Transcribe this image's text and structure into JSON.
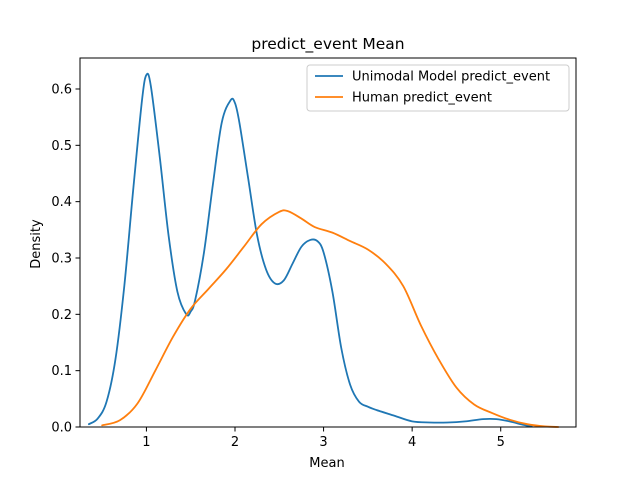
{
  "chart_data": {
    "type": "line",
    "title": "predict_event Mean",
    "xlabel": "Mean",
    "ylabel": "Density",
    "xlim": [
      0.25,
      5.85
    ],
    "ylim": [
      0,
      0.655
    ],
    "xticks": [
      1,
      2,
      3,
      4,
      5
    ],
    "yticks": [
      0.0,
      0.1,
      0.2,
      0.3,
      0.4,
      0.5,
      0.6
    ],
    "grid": false,
    "legend_position": "top-right",
    "series": [
      {
        "name": "Unimodal Model predict_event",
        "color": "#1f77b4",
        "x": [
          0.35,
          0.45,
          0.55,
          0.65,
          0.75,
          0.85,
          0.95,
          1.0,
          1.05,
          1.15,
          1.25,
          1.35,
          1.45,
          1.5,
          1.55,
          1.65,
          1.75,
          1.85,
          1.95,
          2.0,
          2.05,
          2.15,
          2.25,
          2.35,
          2.45,
          2.55,
          2.65,
          2.75,
          2.85,
          2.93,
          3.0,
          3.1,
          3.2,
          3.3,
          3.4,
          3.5,
          3.6,
          3.8,
          4.0,
          4.2,
          4.4,
          4.6,
          4.8,
          4.95,
          5.1,
          5.25,
          5.35
        ],
        "y": [
          0.005,
          0.015,
          0.045,
          0.12,
          0.25,
          0.42,
          0.58,
          0.625,
          0.605,
          0.48,
          0.34,
          0.24,
          0.2,
          0.205,
          0.225,
          0.31,
          0.43,
          0.54,
          0.58,
          0.575,
          0.54,
          0.44,
          0.34,
          0.28,
          0.255,
          0.26,
          0.29,
          0.32,
          0.332,
          0.33,
          0.31,
          0.24,
          0.14,
          0.075,
          0.045,
          0.036,
          0.03,
          0.02,
          0.01,
          0.008,
          0.008,
          0.01,
          0.014,
          0.014,
          0.01,
          0.004,
          0.001
        ]
      },
      {
        "name": "Human predict_event",
        "color": "#ff7f0e",
        "x": [
          0.5,
          0.7,
          0.9,
          1.1,
          1.3,
          1.5,
          1.7,
          1.9,
          2.1,
          2.3,
          2.5,
          2.6,
          2.75,
          2.9,
          3.1,
          3.3,
          3.5,
          3.7,
          3.9,
          4.1,
          4.3,
          4.5,
          4.7,
          4.9,
          5.1,
          5.3,
          5.5,
          5.65
        ],
        "y": [
          0.003,
          0.012,
          0.042,
          0.1,
          0.16,
          0.21,
          0.245,
          0.28,
          0.32,
          0.36,
          0.382,
          0.383,
          0.37,
          0.355,
          0.345,
          0.33,
          0.315,
          0.29,
          0.25,
          0.18,
          0.12,
          0.07,
          0.04,
          0.025,
          0.013,
          0.005,
          0.001,
          0.0
        ]
      }
    ]
  }
}
